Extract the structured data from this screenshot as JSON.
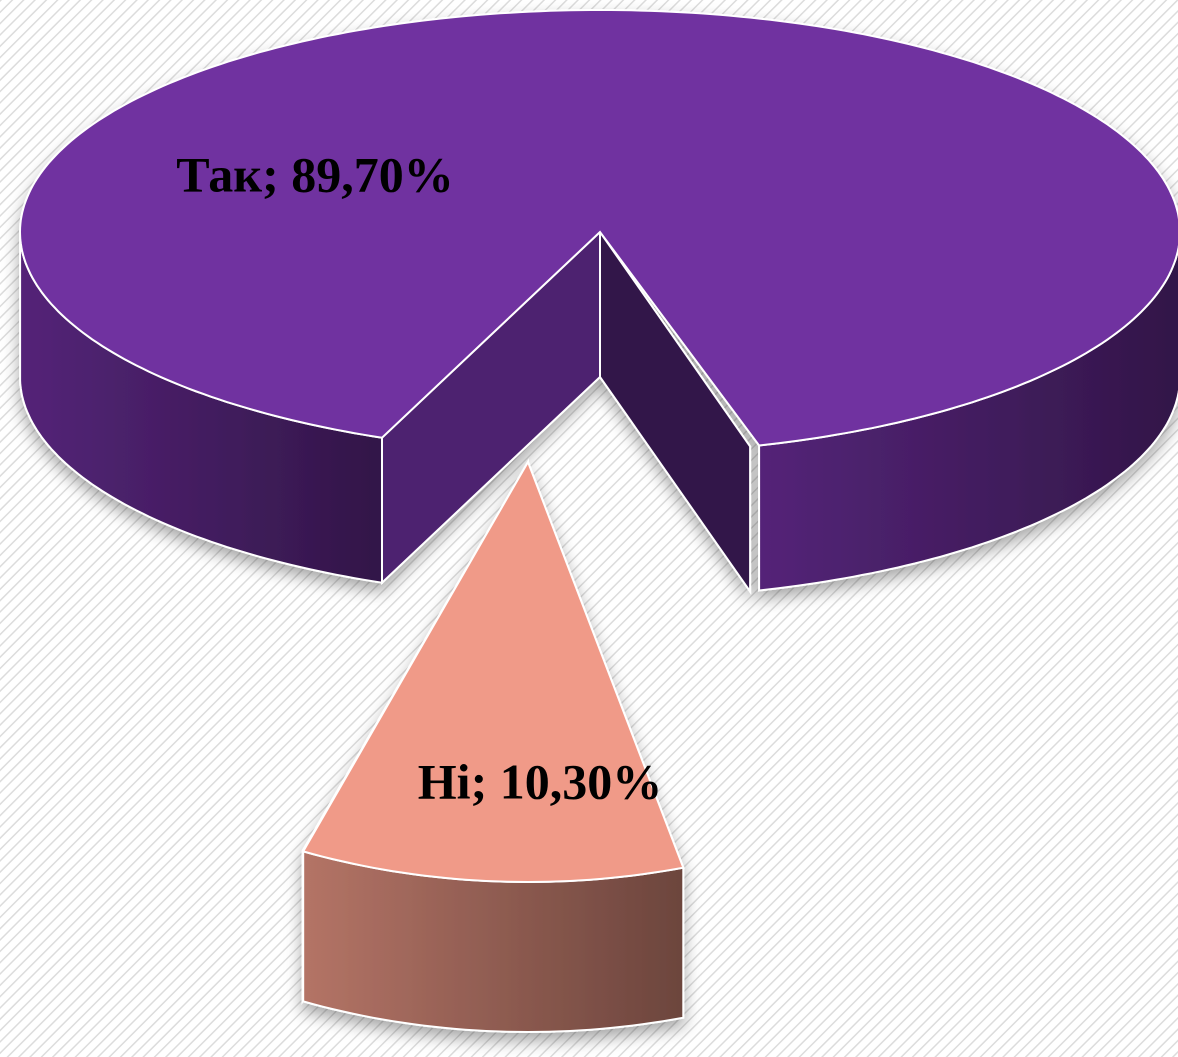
{
  "chart_data": {
    "type": "pie",
    "values": [
      89.7,
      10.3
    ],
    "value_labels": [
      "Так; 89,70%",
      "Ні; 10,30%"
    ],
    "colors": [
      "#7030a0",
      "#f09a88"
    ]
  }
}
